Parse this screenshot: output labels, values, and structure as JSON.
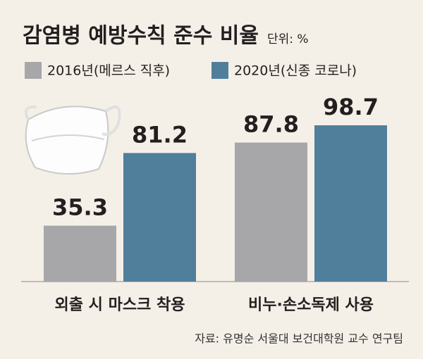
{
  "chart_data": {
    "type": "bar",
    "title": "감염병 예방수칙 준수 비율",
    "unit": "단위: %",
    "categories": [
      "외출 시 마스크 착용",
      "비누·손소독제 사용"
    ],
    "series": [
      {
        "name": "2016년(메르스 직후)",
        "color": "#a7a7a9",
        "values": [
          35.3,
          87.8
        ]
      },
      {
        "name": "2020년(신종 코로나)",
        "color": "#507f9b",
        "values": [
          81.2,
          98.7
        ]
      }
    ],
    "source": "자료: 유명순 서울대 보건대학원 교수 연구팀"
  }
}
